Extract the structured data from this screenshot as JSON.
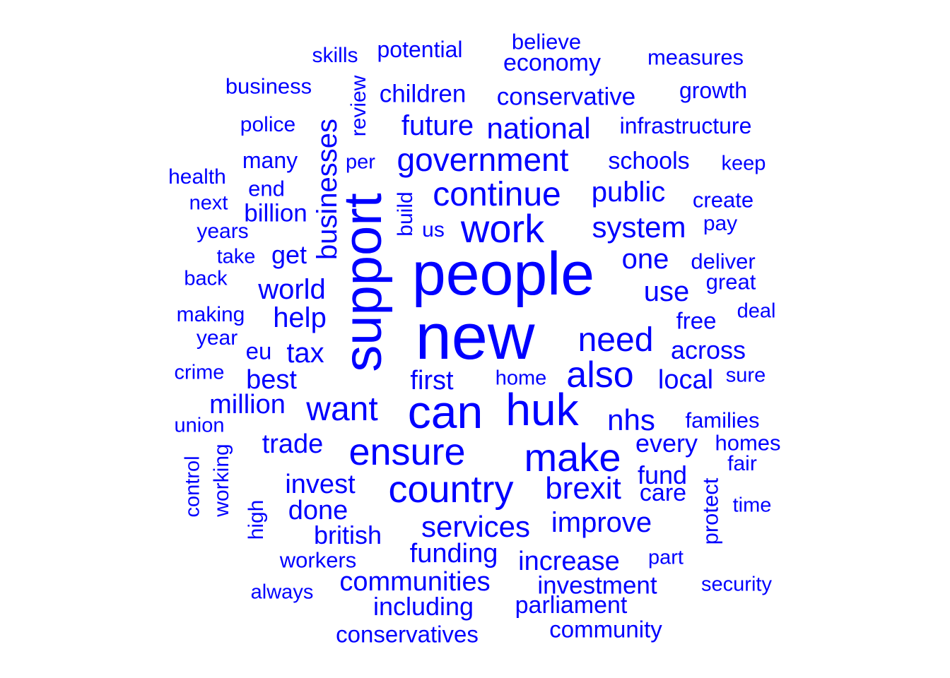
{
  "color": "#0000ff",
  "words": [
    {
      "text": "new",
      "weight": 100
    },
    {
      "text": "people",
      "weight": 95
    },
    {
      "text": "support",
      "weight": 88
    },
    {
      "text": "can",
      "weight": 72
    },
    {
      "text": "huk",
      "weight": 70
    },
    {
      "text": "make",
      "weight": 62
    },
    {
      "text": "work",
      "weight": 60
    },
    {
      "text": "ensure",
      "weight": 60
    },
    {
      "text": "country",
      "weight": 60
    },
    {
      "text": "also",
      "weight": 57
    },
    {
      "text": "continue",
      "weight": 53
    },
    {
      "text": "want",
      "weight": 52
    },
    {
      "text": "need",
      "weight": 52
    },
    {
      "text": "government",
      "weight": 50
    },
    {
      "text": "brexit",
      "weight": 48
    },
    {
      "text": "services",
      "weight": 46
    },
    {
      "text": "businesses",
      "weight": 44
    },
    {
      "text": "system",
      "weight": 46
    },
    {
      "text": "nhs",
      "weight": 45
    },
    {
      "text": "national",
      "weight": 45
    },
    {
      "text": "public",
      "weight": 43
    },
    {
      "text": "world",
      "weight": 43
    },
    {
      "text": "help",
      "weight": 43
    },
    {
      "text": "tax",
      "weight": 43
    },
    {
      "text": "future",
      "weight": 42
    },
    {
      "text": "improve",
      "weight": 42
    },
    {
      "text": "one",
      "weight": 42
    },
    {
      "text": "use",
      "weight": 42
    },
    {
      "text": "funding",
      "weight": 40
    },
    {
      "text": "invest",
      "weight": 40
    },
    {
      "text": "trade",
      "weight": 40
    },
    {
      "text": "local",
      "weight": 40
    },
    {
      "text": "first",
      "weight": 40
    },
    {
      "text": "best",
      "weight": 39
    },
    {
      "text": "increase",
      "weight": 39
    },
    {
      "text": "done",
      "weight": 39
    },
    {
      "text": "communities",
      "weight": 39
    },
    {
      "text": "million",
      "weight": 39
    },
    {
      "text": "get",
      "weight": 38
    },
    {
      "text": "fund",
      "weight": 38
    },
    {
      "text": "every",
      "weight": 38
    },
    {
      "text": "across",
      "weight": 37
    },
    {
      "text": "british",
      "weight": 37
    },
    {
      "text": "including",
      "weight": 37
    },
    {
      "text": "conservative",
      "weight": 36
    },
    {
      "text": "investment",
      "weight": 36
    },
    {
      "text": "billion",
      "weight": 36
    },
    {
      "text": "children",
      "weight": 36
    },
    {
      "text": "parliament",
      "weight": 35
    },
    {
      "text": "economy",
      "weight": 35
    },
    {
      "text": "schools",
      "weight": 35
    },
    {
      "text": "care",
      "weight": 35
    },
    {
      "text": "eu",
      "weight": 34
    },
    {
      "text": "free",
      "weight": 34
    },
    {
      "text": "conservatives",
      "weight": 34
    },
    {
      "text": "community",
      "weight": 34
    },
    {
      "text": "many",
      "weight": 33
    },
    {
      "text": "potential",
      "weight": 33
    },
    {
      "text": "infrastructure",
      "weight": 33
    },
    {
      "text": "growth",
      "weight": 33
    },
    {
      "text": "measures",
      "weight": 32
    },
    {
      "text": "deliver",
      "weight": 32
    },
    {
      "text": "great",
      "weight": 32
    },
    {
      "text": "create",
      "weight": 32
    },
    {
      "text": "end",
      "weight": 32
    },
    {
      "text": "families",
      "weight": 32
    },
    {
      "text": "homes",
      "weight": 32
    },
    {
      "text": "protect",
      "weight": 32
    },
    {
      "text": "workers",
      "weight": 32
    },
    {
      "text": "business",
      "weight": 32
    },
    {
      "text": "believe",
      "weight": 32
    },
    {
      "text": "us",
      "weight": 31
    },
    {
      "text": "build",
      "weight": 31
    },
    {
      "text": "review",
      "weight": 31
    },
    {
      "text": "police",
      "weight": 31
    },
    {
      "text": "making",
      "weight": 31
    },
    {
      "text": "fair",
      "weight": 31
    },
    {
      "text": "pay",
      "weight": 31
    },
    {
      "text": "working",
      "weight": 31
    },
    {
      "text": "skills",
      "weight": 30
    },
    {
      "text": "health",
      "weight": 30
    },
    {
      "text": "years",
      "weight": 30
    },
    {
      "text": "year",
      "weight": 30
    },
    {
      "text": "high",
      "weight": 30
    },
    {
      "text": "security",
      "weight": 30
    },
    {
      "text": "home",
      "weight": 30
    },
    {
      "text": "deal",
      "weight": 30
    },
    {
      "text": "part",
      "weight": 30
    },
    {
      "text": "keep",
      "weight": 30
    },
    {
      "text": "next",
      "weight": 30
    },
    {
      "text": "back",
      "weight": 30
    },
    {
      "text": "take",
      "weight": 30
    },
    {
      "text": "crime",
      "weight": 30
    },
    {
      "text": "union",
      "weight": 30
    },
    {
      "text": "always",
      "weight": 30
    },
    {
      "text": "control",
      "weight": 30
    },
    {
      "text": "sure",
      "weight": 30
    },
    {
      "text": "per",
      "weight": 30
    },
    {
      "text": "time",
      "weight": 30
    }
  ]
}
